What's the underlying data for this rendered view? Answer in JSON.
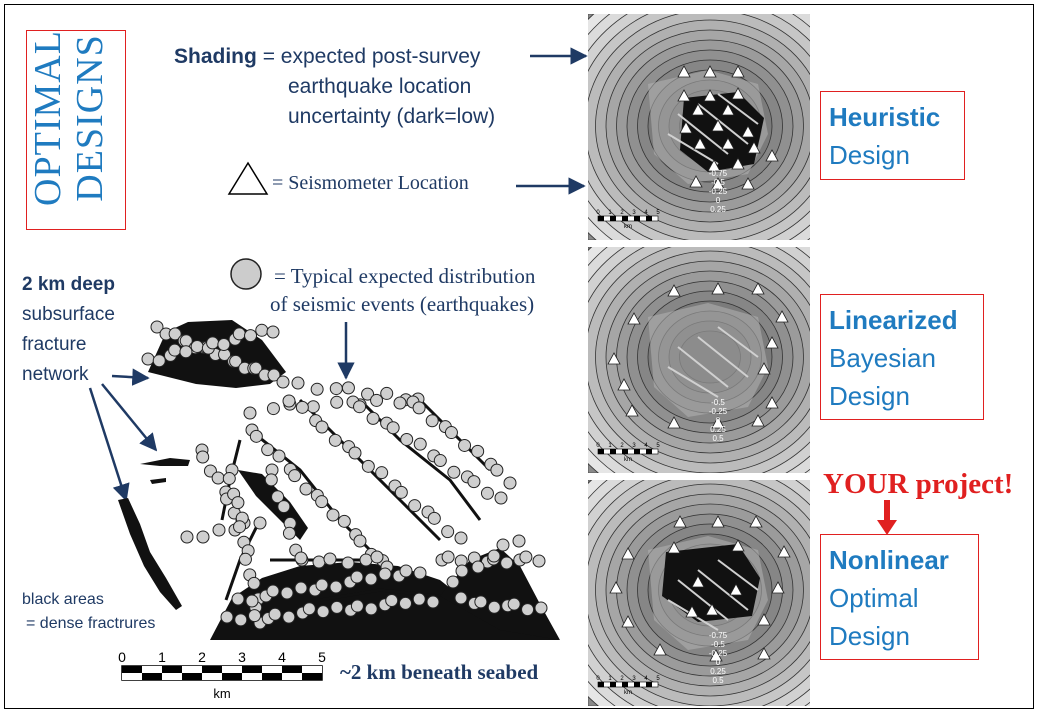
{
  "title": "OPTIMAL DESIGNS",
  "legend": {
    "shading_prefix": "Shading",
    "shading_text_1": "= expected post-survey",
    "shading_text_2": "earthquake location",
    "shading_text_3": "uncertainty (dark=low)",
    "seismometer": "= Seismometer Location",
    "events_1": "= Typical expected distribution",
    "events_2": "of seismic events (earthquakes)"
  },
  "fracture": {
    "label_bold": "2 km deep",
    "label_1": "subsurface",
    "label_2": "fracture",
    "label_3": "network",
    "black_areas_1": "black areas",
    "black_areas_2": "= dense fractrures",
    "scale_ticks": [
      "0",
      "1",
      "2",
      "3",
      "4",
      "5"
    ],
    "scale_unit": "km",
    "depth_note": "~2 km beneath seabed"
  },
  "designs": [
    {
      "bold": "Heuristic",
      "rest": [
        "Design"
      ],
      "contours": [
        "-0.75",
        "-0.5",
        "-0.25",
        "0",
        "0.25"
      ]
    },
    {
      "bold": "Linearized",
      "rest": [
        "Bayesian",
        "Design"
      ],
      "contours": [
        "-0.5",
        "-0.25",
        "0",
        "0.25",
        "0.5"
      ]
    },
    {
      "bold": "Nonlinear",
      "rest": [
        "Optimal",
        "Design"
      ],
      "contours": [
        "-0.75",
        "-0.5",
        "-0.25",
        "0",
        "0.25",
        "0.5"
      ]
    }
  ],
  "your_project": "YOUR project!",
  "panel_scale": {
    "ticks": [
      "0",
      "1",
      "2",
      "3",
      "4",
      "5"
    ],
    "unit": "km"
  },
  "colors": {
    "blue": "#1f7bc0",
    "navy": "#1f3a64",
    "red": "#e02020"
  }
}
